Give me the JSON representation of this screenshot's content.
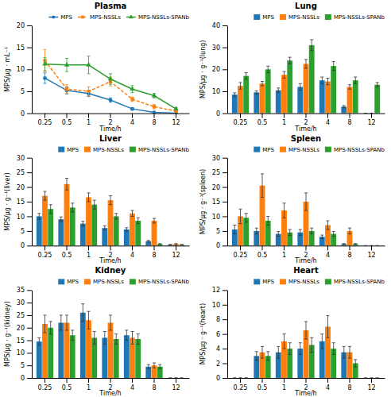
{
  "chart_data": [
    {
      "type": "line",
      "title": "Plasma",
      "x_label": "Time/h",
      "y_label": "MPS/μg · mL⁻¹",
      "categories": [
        "0.25",
        "0.5",
        "1",
        "2",
        "4",
        "8",
        "12"
      ],
      "ylim": [
        0,
        20
      ],
      "yticks": [
        0,
        5,
        10,
        15,
        20
      ],
      "grid": false,
      "legend": "upper right",
      "series": [
        {
          "name": "MPS",
          "marker": "circle",
          "line_style": "solid",
          "values": [
            8.0,
            5.2,
            4.5,
            3.0,
            1.0,
            0.2,
            0.05
          ],
          "errors": [
            1.2,
            0.8,
            0.7,
            0.5,
            0.3,
            0.15,
            0.05
          ]
        },
        {
          "name": "MPS-NSSLs",
          "marker": "square",
          "line_style": "dashed",
          "values": [
            12.0,
            5.5,
            5.0,
            7.2,
            3.2,
            1.5,
            0.5
          ],
          "errors": [
            2.5,
            1.0,
            1.0,
            1.0,
            0.5,
            0.5,
            0.2
          ]
        },
        {
          "name": "MPS-NSSLs-SPANb",
          "marker": "triangle",
          "line_style": "solid",
          "values": [
            11.2,
            11.0,
            11.0,
            7.8,
            5.5,
            4.0,
            1.0
          ],
          "errors": [
            1.5,
            1.5,
            2.0,
            1.2,
            0.8,
            0.5,
            0.3
          ]
        }
      ]
    },
    {
      "type": "bar",
      "title": "Lung",
      "x_label": "Time/h",
      "y_label": "MPS/μg · g⁻¹(lung)",
      "categories": [
        "0.25",
        "0.5",
        "1",
        "2",
        "4",
        "8",
        "12"
      ],
      "ylim": [
        0,
        40
      ],
      "yticks": [
        0,
        10,
        20,
        30,
        40
      ],
      "grid": false,
      "legend": "upper right",
      "series": [
        {
          "name": "MPS",
          "values": [
            8.5,
            9.5,
            10.5,
            12.0,
            15.0,
            3.0,
            0.0
          ],
          "errors": [
            0.8,
            0.7,
            1.0,
            1.5,
            1.5,
            0.5,
            0.0
          ]
        },
        {
          "name": "MPS-NSSLs",
          "values": [
            12.5,
            13.5,
            17.5,
            22.5,
            14.5,
            12.0,
            0.0
          ],
          "errors": [
            1.5,
            1.0,
            1.5,
            2.0,
            1.5,
            1.0,
            0.0
          ]
        },
        {
          "name": "MPS-NSSLs-SPANb",
          "values": [
            17.0,
            20.0,
            24.0,
            31.0,
            21.5,
            15.0,
            13.0
          ],
          "errors": [
            1.5,
            1.5,
            1.5,
            2.5,
            2.0,
            1.5,
            1.0
          ]
        }
      ]
    },
    {
      "type": "bar",
      "title": "Liver",
      "x_label": "Time/h",
      "y_label": "MPS/μg · g⁻¹(liver)",
      "categories": [
        "0.25",
        "0.5",
        "1",
        "2",
        "4",
        "8",
        "12"
      ],
      "ylim": [
        0,
        30
      ],
      "yticks": [
        0,
        5,
        10,
        15,
        20,
        25,
        30
      ],
      "grid": false,
      "legend": "upper right",
      "series": [
        {
          "name": "MPS",
          "values": [
            10.0,
            9.0,
            7.5,
            6.0,
            5.5,
            1.5,
            0.3
          ],
          "errors": [
            1.0,
            0.8,
            0.8,
            0.7,
            0.6,
            0.3,
            0.1
          ]
        },
        {
          "name": "MPS-NSSLs",
          "values": [
            17.0,
            21.0,
            16.5,
            15.5,
            11.0,
            8.5,
            0.5
          ],
          "errors": [
            1.5,
            2.0,
            1.5,
            1.5,
            1.0,
            0.8,
            0.2
          ]
        },
        {
          "name": "MPS-NSSLs-SPANb",
          "values": [
            12.5,
            13.0,
            14.0,
            10.0,
            8.5,
            0.5,
            0.3
          ],
          "errors": [
            1.5,
            1.5,
            1.5,
            1.0,
            1.0,
            0.2,
            0.1
          ]
        }
      ]
    },
    {
      "type": "bar",
      "title": "Spleen",
      "x_label": "Time/h",
      "y_label": "MPS/μg · g⁻¹(spleen)",
      "categories": [
        "0.25",
        "0.5",
        "1",
        "2",
        "4",
        "8",
        "12"
      ],
      "ylim": [
        0,
        30
      ],
      "yticks": [
        0,
        5,
        10,
        15,
        20,
        25,
        30
      ],
      "grid": false,
      "legend": "upper right",
      "series": [
        {
          "name": "MPS",
          "values": [
            5.5,
            5.0,
            4.0,
            4.5,
            3.0,
            0.5,
            0.0
          ],
          "errors": [
            1.5,
            1.0,
            0.8,
            1.0,
            0.6,
            0.2,
            0.0
          ]
        },
        {
          "name": "MPS-NSSLs",
          "values": [
            10.0,
            20.5,
            12.0,
            15.0,
            7.0,
            5.0,
            0.0
          ],
          "errors": [
            2.5,
            4.0,
            2.5,
            3.0,
            1.5,
            1.0,
            0.0
          ]
        },
        {
          "name": "MPS-NSSLs-SPANb",
          "values": [
            9.5,
            8.5,
            4.5,
            5.0,
            4.0,
            0.5,
            0.0
          ],
          "errors": [
            1.5,
            1.5,
            1.0,
            1.0,
            0.8,
            0.2,
            0.0
          ]
        }
      ]
    },
    {
      "type": "bar",
      "title": "Kidney",
      "x_label": "Time/h",
      "y_label": "MPS/μg · g⁻¹(kidney)",
      "categories": [
        "0.25",
        "0.5",
        "1",
        "2",
        "4",
        "8",
        "12"
      ],
      "ylim": [
        0,
        35
      ],
      "yticks": [
        0,
        5,
        10,
        15,
        20,
        25,
        30,
        35
      ],
      "grid": false,
      "legend": "upper right",
      "series": [
        {
          "name": "MPS",
          "values": [
            14.5,
            22.0,
            26.0,
            16.0,
            17.0,
            4.5,
            0.0
          ],
          "errors": [
            1.5,
            3.0,
            3.5,
            2.5,
            2.0,
            0.8,
            0.0
          ]
        },
        {
          "name": "MPS-NSSLs",
          "values": [
            21.5,
            22.0,
            23.0,
            22.0,
            16.0,
            5.0,
            0.0
          ],
          "errors": [
            3.5,
            3.0,
            3.5,
            3.0,
            2.5,
            1.0,
            0.0
          ]
        },
        {
          "name": "MPS-NSSLs-SPANb",
          "values": [
            20.0,
            17.0,
            16.0,
            15.5,
            15.5,
            4.5,
            0.0
          ],
          "errors": [
            2.5,
            2.0,
            2.5,
            2.0,
            2.0,
            0.8,
            0.0
          ]
        }
      ]
    },
    {
      "type": "bar",
      "title": "Heart",
      "x_label": "Time/h",
      "y_label": "MPS/μg · g⁻¹(heart)",
      "categories": [
        "0.25",
        "0.5",
        "1",
        "2",
        "4",
        "8",
        "12"
      ],
      "ylim": [
        0,
        12
      ],
      "yticks": [
        0,
        2,
        4,
        6,
        8,
        10,
        12
      ],
      "grid": false,
      "legend": "upper right",
      "series": [
        {
          "name": "MPS",
          "values": [
            0.0,
            3.0,
            3.5,
            4.0,
            5.0,
            3.5,
            0.0
          ],
          "errors": [
            0.0,
            0.6,
            0.8,
            0.8,
            1.0,
            0.8,
            0.0
          ]
        },
        {
          "name": "MPS-NSSLs",
          "values": [
            0.0,
            3.5,
            5.0,
            6.5,
            7.0,
            3.5,
            0.0
          ],
          "errors": [
            0.0,
            0.8,
            1.0,
            1.2,
            1.5,
            0.8,
            0.0
          ]
        },
        {
          "name": "MPS-NSSLs-SPANb",
          "values": [
            0.0,
            3.0,
            4.0,
            4.5,
            4.0,
            2.0,
            0.0
          ],
          "errors": [
            0.0,
            0.6,
            0.8,
            1.0,
            0.8,
            0.5,
            0.0
          ]
        }
      ]
    }
  ]
}
